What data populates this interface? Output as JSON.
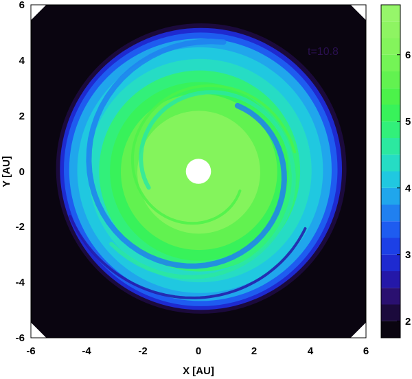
{
  "chart_data": {
    "type": "heatmap",
    "title": "",
    "xlabel": "X [AU]",
    "ylabel": "Y [AU]",
    "xlim": [
      -6,
      6
    ],
    "ylim": [
      -6,
      6
    ],
    "x_ticks": [
      "-6",
      "-4",
      "-2",
      "0",
      "2",
      "4",
      "6"
    ],
    "y_ticks": [
      "-6",
      "-4",
      "-2",
      "0",
      "2",
      "4",
      "6"
    ],
    "annotation": "t=10.8",
    "colorbar": {
      "range": [
        1.75,
        6.75
      ],
      "ticks": [
        "2",
        "3",
        "4",
        "5",
        "6"
      ],
      "levels": [
        {
          "value": 1.75,
          "color": "#0a0510"
        },
        {
          "value": 2.0,
          "color": "#1b0a3c"
        },
        {
          "value": 2.25,
          "color": "#2a1070"
        },
        {
          "value": 2.5,
          "color": "#2418a8"
        },
        {
          "value": 2.75,
          "color": "#1e2ad0"
        },
        {
          "value": 3.0,
          "color": "#1c40e6"
        },
        {
          "value": 3.25,
          "color": "#1e5cf0"
        },
        {
          "value": 3.5,
          "color": "#2080f0"
        },
        {
          "value": 3.75,
          "color": "#20a6ec"
        },
        {
          "value": 4.0,
          "color": "#20c8e0"
        },
        {
          "value": 4.25,
          "color": "#26dcc4"
        },
        {
          "value": 4.5,
          "color": "#2ce8a0"
        },
        {
          "value": 4.75,
          "color": "#32f07a"
        },
        {
          "value": 5.0,
          "color": "#38f25a"
        },
        {
          "value": 5.25,
          "color": "#4cf24a"
        },
        {
          "value": 5.5,
          "color": "#62f250"
        },
        {
          "value": 5.75,
          "color": "#74f456"
        },
        {
          "value": 6.0,
          "color": "#84f45c"
        },
        {
          "value": 6.25,
          "color": "#8ef462"
        },
        {
          "value": 6.5,
          "color": "#96f66a"
        }
      ]
    },
    "disk": {
      "center": [
        0.1,
        0.1
      ],
      "inner_hole_radius": 0.45,
      "outer_radius": 5.2,
      "rings": [
        {
          "radius": 5.2,
          "value": 2.0
        },
        {
          "radius": 5.05,
          "value": 2.75
        },
        {
          "radius": 4.9,
          "value": 3.25
        },
        {
          "radius": 4.7,
          "value": 3.75
        },
        {
          "radius": 4.4,
          "value": 4.0
        },
        {
          "radius": 4.0,
          "value": 4.25
        },
        {
          "radius": 3.6,
          "value": 4.75
        },
        {
          "radius": 3.2,
          "value": 5.0
        },
        {
          "radius": 2.8,
          "value": 5.5
        },
        {
          "radius": 2.2,
          "value": 6.0
        }
      ]
    }
  }
}
